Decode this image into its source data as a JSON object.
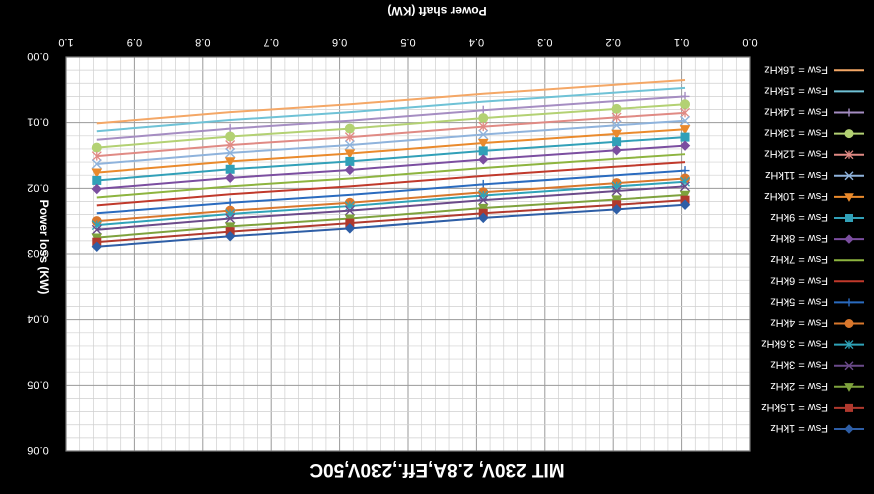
{
  "chart_data": {
    "type": "line",
    "orientation": "image rotated 180 degrees",
    "title": "MIT 230V, 2.8A,Eff.,230V,50C",
    "xlabel": "Power shaft (KW)",
    "ylabel": "Power loss (KW)",
    "xlim": [
      0.0,
      1.0
    ],
    "ylim": [
      0.0,
      0.06
    ],
    "x_ticks": [
      "0.0",
      "0.1",
      "0.2",
      "0.3",
      "0.4",
      "0.5",
      "0.6",
      "0.7",
      "0.8",
      "0.9",
      "1.0"
    ],
    "y_ticks": [
      "0.00",
      "0.01",
      "0.02",
      "0.03",
      "0.04",
      "0.05",
      "0.06"
    ],
    "grid": true,
    "legend_position": "right",
    "x": [
      0.095,
      0.195,
      0.39,
      0.585,
      0.76,
      0.955
    ],
    "series": [
      {
        "name": "Fsw = 1kHz",
        "color": "#2e5ea6",
        "marker": "diamond",
        "values": [
          0.0225,
          0.0232,
          0.0245,
          0.0261,
          0.0273,
          0.0289
        ]
      },
      {
        "name": "Fsw = 1.5kHz",
        "color": "#b0392e",
        "marker": "square",
        "values": [
          0.0218,
          0.0225,
          0.0238,
          0.0253,
          0.0266,
          0.0282
        ]
      },
      {
        "name": "Fsw = 2kHz",
        "color": "#7ea23d",
        "marker": "triangle",
        "values": [
          0.021,
          0.0217,
          0.023,
          0.0246,
          0.0258,
          0.0275
        ]
      },
      {
        "name": "Fsw = 3kHz",
        "color": "#6b4a8a",
        "marker": "x",
        "values": [
          0.0197,
          0.0204,
          0.0218,
          0.0234,
          0.0246,
          0.0263
        ]
      },
      {
        "name": "Fsw = 3.6kHz",
        "color": "#2fa3b8",
        "marker": "asterisk",
        "values": [
          0.019,
          0.0197,
          0.0211,
          0.0227,
          0.0239,
          0.0256
        ]
      },
      {
        "name": "Fsw = 4kHz",
        "color": "#d9772c",
        "marker": "circle",
        "values": [
          0.0185,
          0.0192,
          0.0206,
          0.0222,
          0.0234,
          0.025
        ]
      },
      {
        "name": "Fsw = 5kHz",
        "color": "#2a6bbf",
        "marker": "plus",
        "values": [
          0.0173,
          0.018,
          0.0194,
          0.021,
          0.0222,
          0.0238
        ]
      },
      {
        "name": "Fsw = 6kHz",
        "color": "#c0392b",
        "marker": "none",
        "values": [
          0.016,
          0.0167,
          0.0181,
          0.0197,
          0.0209,
          0.0226
        ]
      },
      {
        "name": "Fsw = 7kHz",
        "color": "#8db43f",
        "marker": "none",
        "values": [
          0.0148,
          0.0155,
          0.0169,
          0.0185,
          0.0197,
          0.0214
        ]
      },
      {
        "name": "Fsw = 8kHz",
        "color": "#7b4ea0",
        "marker": "diamond",
        "values": [
          0.0135,
          0.0142,
          0.0156,
          0.0172,
          0.0184,
          0.0201
        ]
      },
      {
        "name": "Fsw = 9kHz",
        "color": "#31a0b8",
        "marker": "square",
        "values": [
          0.0122,
          0.0129,
          0.0143,
          0.0159,
          0.0171,
          0.0188
        ]
      },
      {
        "name": "Fsw = 10kHz",
        "color": "#ea8a2c",
        "marker": "triangle",
        "values": [
          0.011,
          0.0117,
          0.0131,
          0.0147,
          0.0159,
          0.0176
        ]
      },
      {
        "name": "Fsw = 11kHz",
        "color": "#8fb3dc",
        "marker": "x",
        "values": [
          0.0097,
          0.0104,
          0.0118,
          0.0134,
          0.0146,
          0.0163
        ]
      },
      {
        "name": "Fsw = 12kHz",
        "color": "#e08a84",
        "marker": "asterisk",
        "values": [
          0.0085,
          0.0092,
          0.0106,
          0.0122,
          0.0134,
          0.0151
        ]
      },
      {
        "name": "Fsw = 13kHz",
        "color": "#b3d173",
        "marker": "circle",
        "values": [
          0.0072,
          0.0079,
          0.0093,
          0.0109,
          0.0121,
          0.0138
        ]
      },
      {
        "name": "Fsw = 14kHz",
        "color": "#a58dc2",
        "marker": "plus",
        "values": [
          0.006,
          0.0067,
          0.0081,
          0.0097,
          0.0109,
          0.0126
        ]
      },
      {
        "name": "Fsw = 15kHz",
        "color": "#6fc2d6",
        "marker": "none",
        "values": [
          0.0047,
          0.0054,
          0.0068,
          0.0084,
          0.0096,
          0.0113
        ]
      },
      {
        "name": "Fsw = 16kHz",
        "color": "#f4a766",
        "marker": "none",
        "values": [
          0.0035,
          0.0042,
          0.0056,
          0.0072,
          0.0084,
          0.0101
        ]
      }
    ]
  }
}
